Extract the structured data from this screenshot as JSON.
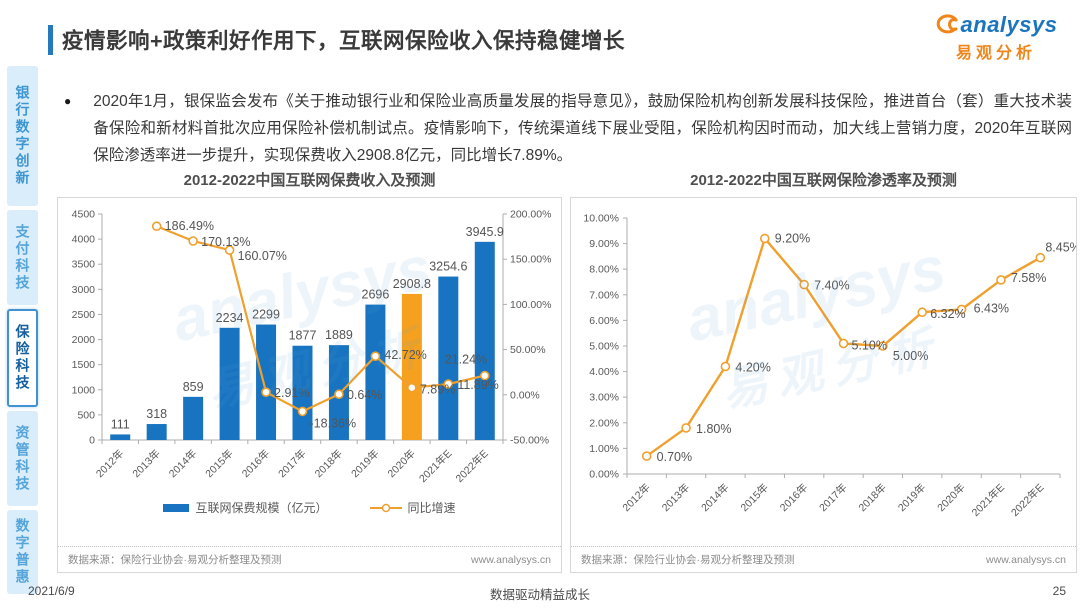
{
  "header": {
    "title": "疫情影响+政策利好作用下，互联网保险收入保持稳健增长",
    "logo_text": "analysys",
    "logo_subtext": "易观分析"
  },
  "sidebar": {
    "tabs": [
      {
        "label": "银行数字创新",
        "active": false
      },
      {
        "label": "支付科技",
        "active": false
      },
      {
        "label": "保险科技",
        "active": true
      },
      {
        "label": "资管科技",
        "active": false
      },
      {
        "label": "数字普惠",
        "active": false
      }
    ]
  },
  "bullet": {
    "marker": "●",
    "text": "2020年1月，银保监会发布《关于推动银行业和保险业高质量发展的指导意见》，鼓励保险机构创新发展科技保险，推进首台（套）重大技术装备保险和新材料首批次应用保险补偿机制试点。疫情影响下，传统渠道线下展业受阻，保险机构因时而动，加大线上营销力度，2020年互联网保险渗透率进一步提升，实现保费收入2908.8亿元，同比增长7.89%。"
  },
  "chart_data": [
    {
      "type": "bar",
      "title": "2012-2022中国互联网保费收入及预测",
      "categories": [
        "2012年",
        "2013年",
        "2014年",
        "2015年",
        "2016年",
        "2017年",
        "2018年",
        "2019年",
        "2020年",
        "2021年E",
        "2022年E"
      ],
      "series": [
        {
          "name": "互联网保费规模（亿元）",
          "type": "bar",
          "values": [
            111,
            318,
            859,
            2234,
            2299,
            1877,
            1889,
            2696,
            2908.8,
            3254.6,
            3945.9
          ]
        },
        {
          "name": "同比增速",
          "type": "line",
          "values": [
            null,
            186.49,
            170.13,
            160.07,
            2.91,
            -18.36,
            0.64,
            42.72,
            7.89,
            11.89,
            21.24
          ]
        }
      ],
      "highlight_index": 8,
      "y_left": {
        "min": 0,
        "max": 4500,
        "step": 500
      },
      "y_right": {
        "min": -50,
        "max": 200,
        "step": 50,
        "format": "percent"
      },
      "grid": false,
      "legend_position": "bottom",
      "source": "数据来源：保险行业协会·易观分析整理及预测",
      "website": "www.analysys.cn"
    },
    {
      "type": "line",
      "title": "2012-2022中国互联网保险渗透率及预测",
      "categories": [
        "2012年",
        "2013年",
        "2014年",
        "2015年",
        "2016年",
        "2017年",
        "2018年",
        "2019年",
        "2020年",
        "2021年E",
        "2022年E"
      ],
      "values": [
        0.7,
        1.8,
        4.2,
        9.2,
        7.4,
        5.1,
        5.0,
        6.32,
        6.43,
        7.58,
        8.45
      ],
      "ylim": [
        0,
        10
      ],
      "y_step": 1,
      "grid": false,
      "source": "数据来源：保险行业协会·易观分析整理及预测",
      "website": "www.analysys.cn"
    }
  ],
  "colors": {
    "bar_blue": "#1874C0",
    "bar_highlight": "#F5A01E",
    "line_orange": "#EFA02E",
    "accent_blue": "#2779BD",
    "brand_blue": "#1B74BE",
    "brand_orange": "#F08519",
    "axis_gray": "#ADADAD",
    "label_gray": "#595959"
  },
  "footer": {
    "date": "2021/6/9",
    "slogan": "数据驱动精益成长",
    "page": "25"
  }
}
